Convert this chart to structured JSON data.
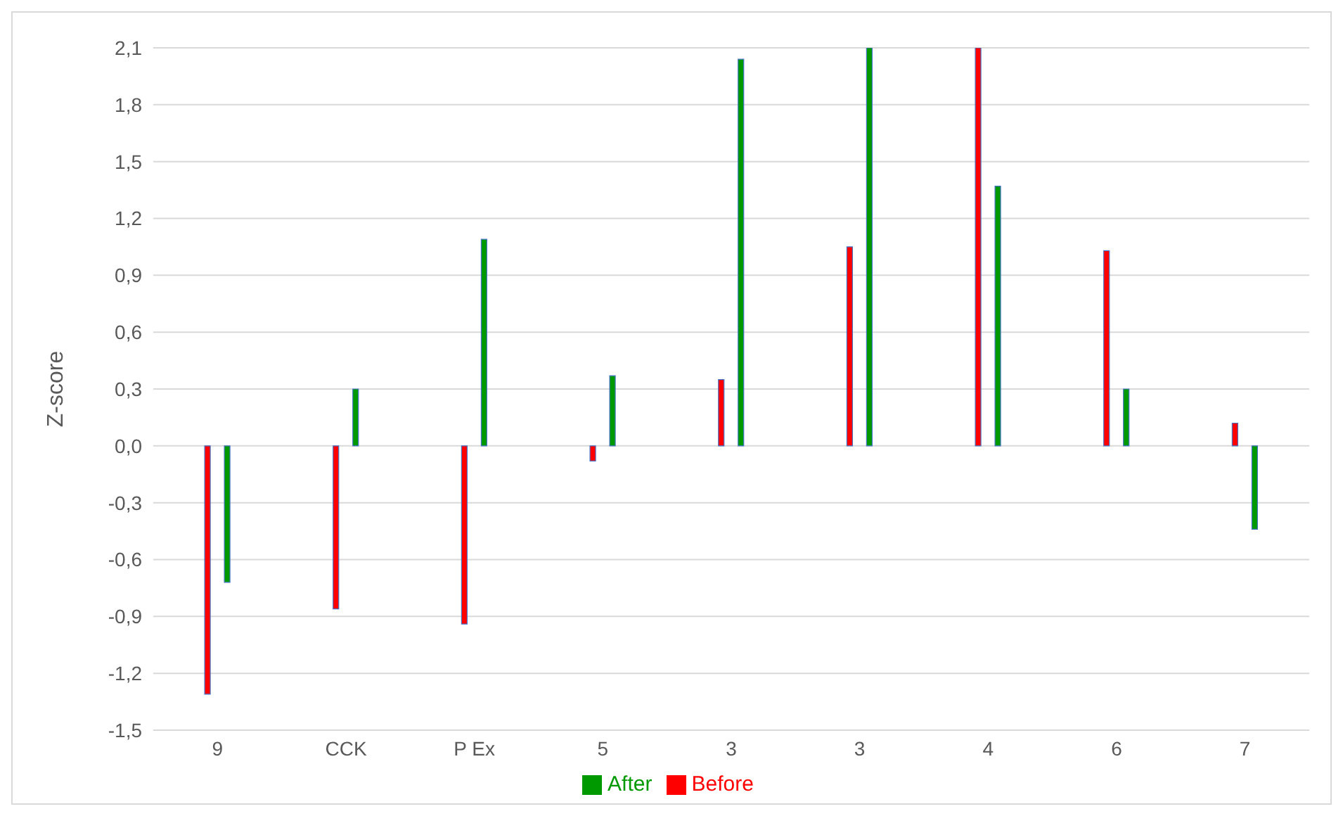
{
  "chart_data": {
    "type": "bar",
    "ylabel": "Z-score",
    "categories": [
      "9",
      "CCK",
      "P Ex",
      "5",
      "3",
      "3",
      "4",
      "6",
      "7"
    ],
    "series": [
      {
        "name": "Before",
        "color": "#ff0000",
        "values": [
          -1.31,
          -0.86,
          -0.94,
          -0.08,
          0.35,
          1.05,
          2.1,
          1.03,
          0.12
        ]
      },
      {
        "name": "After",
        "color": "#009900",
        "values": [
          -0.72,
          0.3,
          1.09,
          0.37,
          2.04,
          2.1,
          1.37,
          0.3,
          -0.44
        ]
      }
    ],
    "ylim": [
      -1.5,
      2.1
    ],
    "yticks": [
      {
        "value": -1.5,
        "label": "-1,5"
      },
      {
        "value": -1.2,
        "label": "-1,2"
      },
      {
        "value": -0.9,
        "label": "-0,9"
      },
      {
        "value": -0.6,
        "label": "-0,6"
      },
      {
        "value": -0.3,
        "label": "-0,3"
      },
      {
        "value": 0,
        "label": "0,0"
      },
      {
        "value": 0.3,
        "label": "0,3"
      },
      {
        "value": 0.6,
        "label": "0,6"
      },
      {
        "value": 0.9,
        "label": "0,9"
      },
      {
        "value": 1.2,
        "label": "1,2"
      },
      {
        "value": 1.5,
        "label": "1,5"
      },
      {
        "value": 1.8,
        "label": "1,8"
      },
      {
        "value": 2.1,
        "label": "2,1"
      }
    ],
    "grid": "y",
    "legend": "bottom"
  }
}
